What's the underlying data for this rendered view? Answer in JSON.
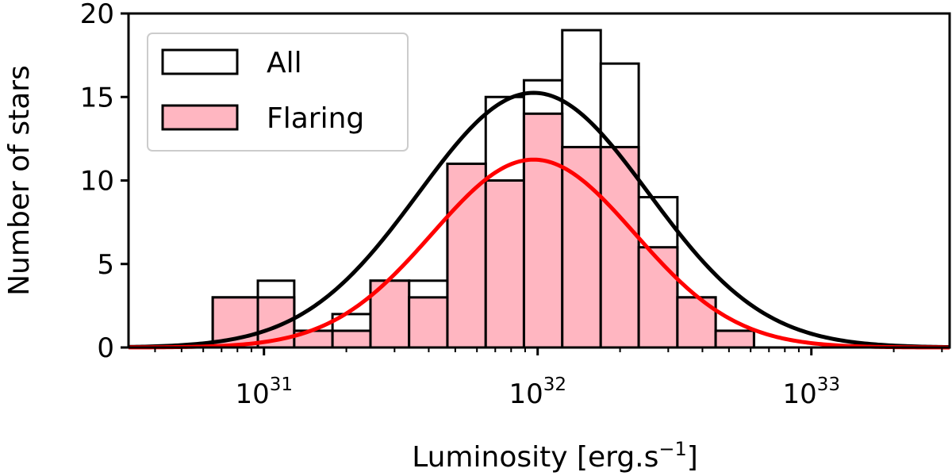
{
  "chart_data": {
    "type": "bar",
    "x_scale": "log",
    "xlabel": "Luminosity [erg.s",
    "xlabel_sup": "−1",
    "xlabel_close": "]",
    "ylabel": "Number of stars",
    "xlim": [
      3.2e+30,
      3.2e+33
    ],
    "ylim": [
      0,
      20
    ],
    "x_ticks": [
      {
        "value": 1e+31,
        "base": "10",
        "exp": "31"
      },
      {
        "value": 1e+32,
        "base": "10",
        "exp": "32"
      },
      {
        "value": 1e+33,
        "base": "10",
        "exp": "33"
      }
    ],
    "y_ticks": [
      0,
      5,
      10,
      15,
      20
    ],
    "y_tick_labels": [
      "0",
      "5",
      "10",
      "15",
      "20"
    ],
    "bin_edges": [
      6.5e+30,
      9.5e+30,
      1.29e+31,
      1.78e+31,
      2.45e+31,
      3.39e+31,
      4.68e+31,
      6.46e+31,
      8.91e+31,
      1.23e+32,
      1.7e+32,
      2.34e+32,
      3.24e+32,
      4.47e+32,
      6.17e+32,
      8.51e+32
    ],
    "series": [
      {
        "name": "All",
        "values": [
          3,
          4,
          1,
          2,
          4,
          4,
          11,
          15,
          16,
          19,
          17,
          9,
          3,
          1,
          0
        ],
        "fit_peak": 15.25,
        "fit_center_log10": 31.985,
        "fit_sigma_log10": 0.42
      },
      {
        "name": "Flaring",
        "values": [
          3,
          3,
          1,
          1,
          4,
          3,
          11,
          10,
          14,
          12,
          12,
          6,
          3,
          1,
          0
        ],
        "fit_peak": 11.25,
        "fit_center_log10": 31.985,
        "fit_sigma_log10": 0.37
      }
    ],
    "legend": {
      "placement": "upper-left",
      "entries": [
        "All",
        "Flaring"
      ]
    },
    "grid": false,
    "colors": {
      "flaring_fill": "#ffb6c1",
      "all_fit": "#000000",
      "flaring_fit": "#ff0000",
      "edge": "#000000"
    }
  }
}
